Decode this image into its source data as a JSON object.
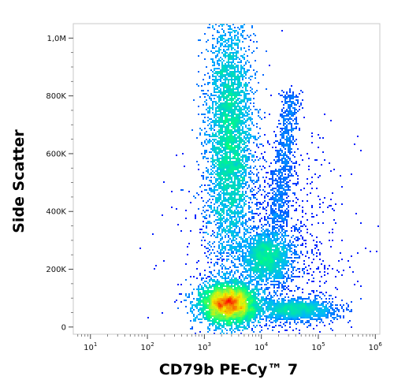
{
  "chart_data": {
    "type": "scatter",
    "subtype": "flow-cytometry-density-plot",
    "xlabel": "CD79b PE-Cy™ 7",
    "ylabel": "Side Scatter",
    "x_scale": "log",
    "xlim": [
      5,
      1200000
    ],
    "ylim": [
      -25000,
      1050000
    ],
    "x_ticks": [
      {
        "value": 10,
        "base": "10",
        "exp": "1"
      },
      {
        "value": 100,
        "base": "10",
        "exp": "2"
      },
      {
        "value": 1000,
        "base": "10",
        "exp": "3"
      },
      {
        "value": 10000,
        "base": "10",
        "exp": "4"
      },
      {
        "value": 100000,
        "base": "10",
        "exp": "5"
      },
      {
        "value": 1000000,
        "base": "10",
        "exp": "6"
      }
    ],
    "y_ticks": [
      {
        "value": 0,
        "label": "0"
      },
      {
        "value": 200000,
        "label": "200K"
      },
      {
        "value": 400000,
        "label": "400K"
      },
      {
        "value": 600000,
        "label": "600K"
      },
      {
        "value": 800000,
        "label": "800K"
      },
      {
        "value": 1000000,
        "label": "1,0M"
      }
    ],
    "grid": false,
    "legend": "none",
    "colormap": [
      "#0000ff",
      "#00b4ff",
      "#00ff7f",
      "#f0f000",
      "#ff0000"
    ],
    "populations": [
      {
        "x": 2800,
        "y": 660000,
        "x_spread": 0.2,
        "y_spread": 210000,
        "points": 4200,
        "peak_density": 0.8,
        "shape": "tall-ellipse"
      },
      {
        "x": 2600,
        "y": 80000,
        "x_spread": 0.25,
        "y_spread": 35000,
        "points": 4000,
        "peak_density": 1.0,
        "shape": "round-dense-blob"
      },
      {
        "x": 12000,
        "y": 240000,
        "x_spread": 0.22,
        "y_spread": 45000,
        "points": 1800,
        "peak_density": 0.5,
        "shape": "ellipse"
      },
      {
        "x": 40000,
        "y": 60000,
        "x_spread": 0.35,
        "y_spread": 20000,
        "points": 1500,
        "peak_density": 0.35,
        "shape": "horizontal-smear"
      },
      {
        "x": 25000,
        "y": 580000,
        "x_spread": 0.18,
        "y_spread": 230000,
        "points": 900,
        "peak_density": 0.2,
        "shape": "diagonal-streak"
      },
      {
        "x": 10000,
        "y": 270000,
        "x_spread": 0.7,
        "y_spread": 200000,
        "points": 1400,
        "peak_density": 0.05,
        "shape": "sparse-scatter"
      }
    ]
  }
}
